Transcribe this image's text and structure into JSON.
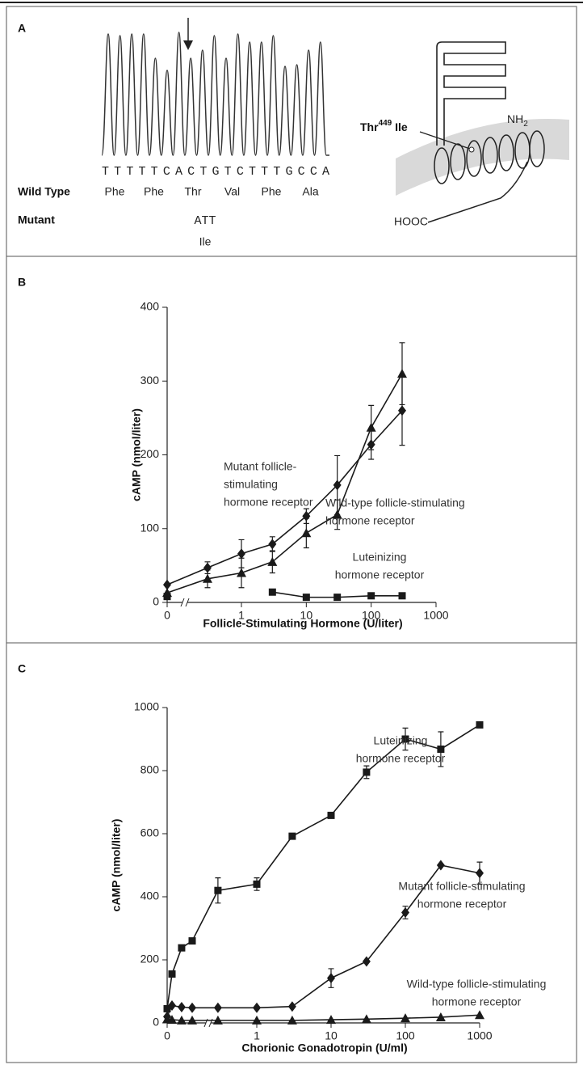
{
  "panel_a": {
    "label": "A",
    "sequence": "TTTTTCACTGTCTTTGCCA",
    "wild_type_label": "Wild Type",
    "wild_type_codons": [
      "Phe",
      "Phe",
      "Thr",
      "Val",
      "Phe",
      "Ala"
    ],
    "mutant_label": "Mutant",
    "mutant_codon": "ATT",
    "mutant_amino_acid": "Ile",
    "mutation": {
      "prefix": "Thr",
      "superscript": "449",
      "suffix": " Ile"
    },
    "nh2": {
      "base": "NH",
      "subscript": "2"
    },
    "hooc": "HOOC"
  },
  "chart_data": [
    {
      "type": "line",
      "panel_label": "B",
      "y_label": "cAMP (nmol/liter)",
      "x_label": "Follicle-Stimulating Hormone (U/liter)",
      "xscale": "log",
      "x_break": true,
      "x": [
        0,
        0.3,
        1,
        3,
        10,
        30,
        100,
        300
      ],
      "xlim": [
        0,
        1000
      ],
      "xticks": [
        0,
        1,
        10,
        100,
        1000
      ],
      "ylim": [
        0,
        400
      ],
      "yticks": [
        0,
        100,
        200,
        300,
        400
      ],
      "series": [
        {
          "label": [
            "Mutant follicle-",
            "stimulating",
            "hormone receptor"
          ],
          "marker": "diamond",
          "color": "#1a1a1a",
          "values": [
            24,
            47,
            66,
            79,
            117,
            159,
            214,
            260
          ],
          "errors": [
            null,
            8,
            19,
            10,
            10,
            40,
            20,
            47
          ]
        },
        {
          "label": [
            "Wild-type follicle-stimulating",
            "hormone receptor"
          ],
          "marker": "triangle",
          "color": "#1a1a1a",
          "values": [
            13,
            32,
            40,
            55,
            94,
            119,
            237,
            310
          ],
          "errors": [
            null,
            12,
            20,
            15,
            20,
            20,
            30,
            42
          ]
        },
        {
          "label": [
            "Luteinizing",
            "hormone receptor"
          ],
          "marker": "square",
          "color": "#1a1a1a",
          "values": [
            8,
            null,
            null,
            14,
            7,
            7,
            9,
            9
          ]
        }
      ]
    },
    {
      "type": "line",
      "panel_label": "C",
      "y_label": "cAMP (nmol/liter)",
      "x_label": "Chorionic Gonadotropin (U/ml)",
      "xscale": "log",
      "x_break": true,
      "x": [
        0,
        0.01,
        0.03,
        0.1,
        0.3,
        1,
        3,
        10,
        30,
        100,
        300,
        1000
      ],
      "xlim": [
        0,
        1000
      ],
      "xticks": [
        0,
        1,
        10,
        100,
        1000
      ],
      "ylim": [
        0,
        1000
      ],
      "yticks": [
        0,
        200,
        400,
        600,
        800,
        1000
      ],
      "series": [
        {
          "label": [
            "Luteinizing",
            "hormone receptor"
          ],
          "marker": "square",
          "color": "#1a1a1a",
          "values": [
            45,
            155,
            238,
            260,
            420,
            440,
            592,
            658,
            795,
            900,
            868,
            945
          ],
          "errors": [
            null,
            null,
            null,
            null,
            40,
            20,
            null,
            null,
            20,
            35,
            55,
            null
          ]
        },
        {
          "label": [
            "Mutant follicle-stimulating",
            "hormone receptor"
          ],
          "marker": "diamond",
          "color": "#1a1a1a",
          "values": [
            20,
            55,
            50,
            48,
            48,
            48,
            52,
            142,
            195,
            350,
            500,
            475
          ],
          "errors": [
            null,
            null,
            null,
            null,
            null,
            null,
            null,
            30,
            null,
            20,
            null,
            35
          ]
        },
        {
          "label": [
            "Wild-type follicle-stimulating",
            "hormone receptor"
          ],
          "marker": "triangle",
          "color": "#1a1a1a",
          "values": [
            12,
            10,
            8,
            8,
            8,
            8,
            8,
            10,
            12,
            15,
            18,
            25
          ]
        }
      ]
    }
  ]
}
